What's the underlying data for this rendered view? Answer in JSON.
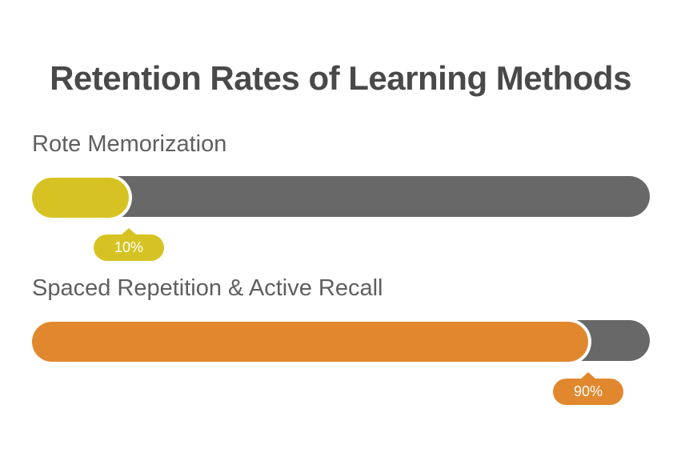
{
  "title": "Retention Rates of Learning Methods",
  "colors": {
    "track": "#686868",
    "title_text": "#494949",
    "label_text": "#5f5f5f",
    "badge_text": "#ffffff",
    "background": "#ffffff"
  },
  "bars": [
    {
      "label": "Rote Memorization",
      "value": 10,
      "value_label": "10%",
      "color": "#d6c323"
    },
    {
      "label": "Spaced Repetition & Active Recall",
      "value": 90,
      "value_label": "90%",
      "color": "#e1882f"
    }
  ],
  "chart_data": {
    "type": "bar",
    "orientation": "horizontal",
    "title": "Retention Rates of Learning Methods",
    "categories": [
      "Rote Memorization",
      "Spaced Repetition & Active Recall"
    ],
    "values": [
      10,
      90
    ],
    "value_labels": [
      "10%",
      "90%"
    ],
    "xlim": [
      0,
      100
    ],
    "unit": "%",
    "grid": false,
    "legend": false,
    "series_colors": [
      "#d6c323",
      "#e1882f"
    ],
    "track_color": "#686868"
  }
}
